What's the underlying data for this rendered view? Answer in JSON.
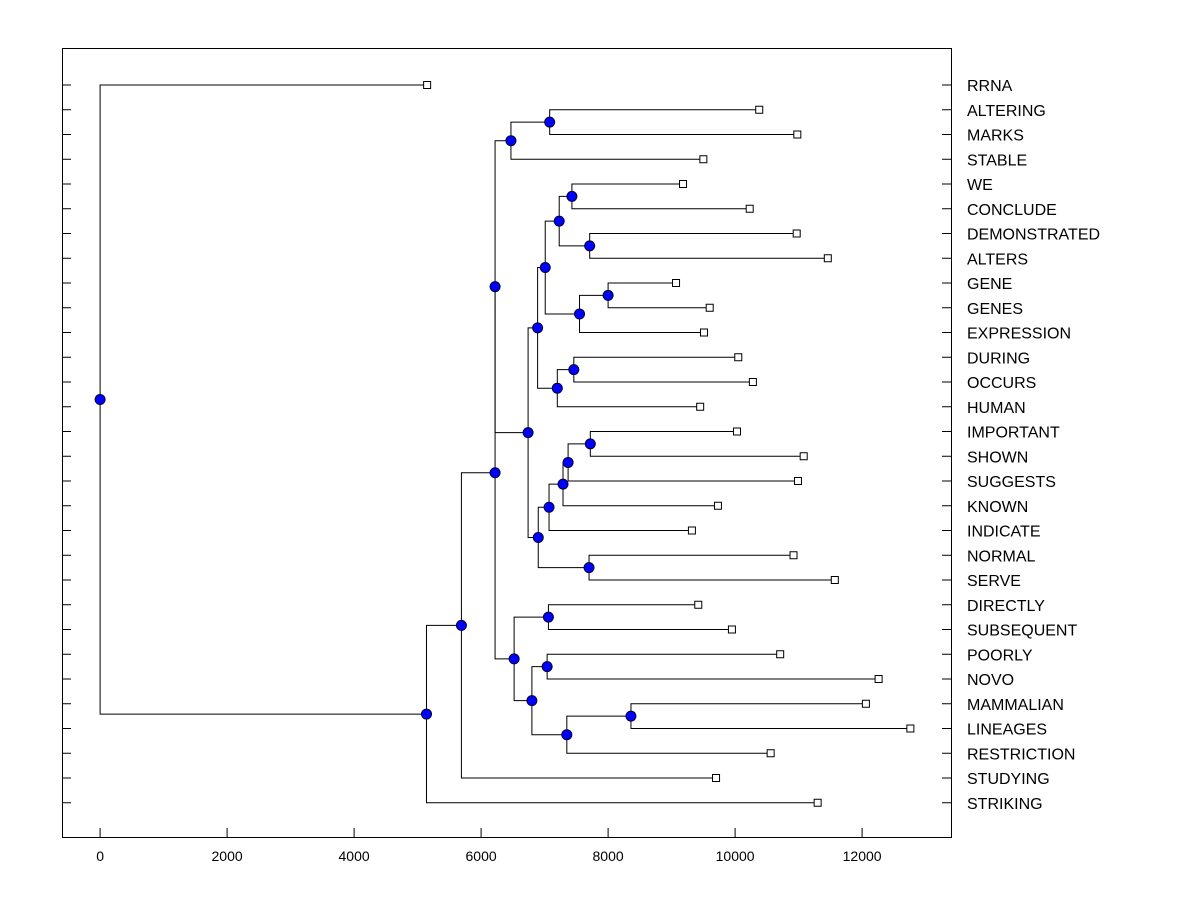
{
  "chart_data": {
    "type": "dendrogram",
    "title": "",
    "xlabel": "",
    "ylabel": "",
    "xlim": [
      -600,
      13400
    ],
    "x_ticks": [
      0,
      2000,
      4000,
      6000,
      8000,
      10000,
      12000
    ],
    "x_tick_labels": [
      "0",
      "2000",
      "4000",
      "6000",
      "8000",
      "10000",
      "12000"
    ],
    "colors": {
      "node": "#0000ff",
      "leaf": "#ffffff",
      "line": "#000000"
    },
    "leaves": [
      {
        "label": "RRNA",
        "x": 5150
      },
      {
        "label": "ALTERING",
        "x": 10380
      },
      {
        "label": "MARKS",
        "x": 10980
      },
      {
        "label": "STABLE",
        "x": 9500
      },
      {
        "label": "WE",
        "x": 9180
      },
      {
        "label": "CONCLUDE",
        "x": 10230
      },
      {
        "label": "DEMONSTRATED",
        "x": 10970
      },
      {
        "label": "ALTERS",
        "x": 11460
      },
      {
        "label": "GENE",
        "x": 9070
      },
      {
        "label": "GENES",
        "x": 9600
      },
      {
        "label": "EXPRESSION",
        "x": 9510
      },
      {
        "label": "DURING",
        "x": 10050
      },
      {
        "label": "OCCURS",
        "x": 10280
      },
      {
        "label": "HUMAN",
        "x": 9450
      },
      {
        "label": "IMPORTANT",
        "x": 10030
      },
      {
        "label": "SHOWN",
        "x": 11080
      },
      {
        "label": "SUGGESTS",
        "x": 10990
      },
      {
        "label": "KNOWN",
        "x": 9730
      },
      {
        "label": "INDICATE",
        "x": 9320
      },
      {
        "label": "NORMAL",
        "x": 10920
      },
      {
        "label": "SERVE",
        "x": 11570
      },
      {
        "label": "DIRECTLY",
        "x": 9420
      },
      {
        "label": "SUBSEQUENT",
        "x": 9950
      },
      {
        "label": "POORLY",
        "x": 10710
      },
      {
        "label": "NOVO",
        "x": 12260
      },
      {
        "label": "MAMMALIAN",
        "x": 12060
      },
      {
        "label": "LINEAGES",
        "x": 12760
      },
      {
        "label": "RESTRICTION",
        "x": 10560
      },
      {
        "label": "STUDYING",
        "x": 9700
      },
      {
        "label": "STRIKING",
        "x": 11300
      }
    ],
    "merges": [
      {
        "x": 7080,
        "children": [
          "L1",
          "L2"
        ]
      },
      {
        "x": 6470,
        "children": [
          "M0",
          "L3"
        ]
      },
      {
        "x": 7430,
        "children": [
          "L4",
          "L5"
        ]
      },
      {
        "x": 7710,
        "children": [
          "L6",
          "L7"
        ]
      },
      {
        "x": 7230,
        "children": [
          "M2",
          "M3"
        ]
      },
      {
        "x": 8000,
        "children": [
          "L8",
          "L9"
        ]
      },
      {
        "x": 7550,
        "children": [
          "M5",
          "L10"
        ]
      },
      {
        "x": 7010,
        "children": [
          "M4",
          "M6"
        ]
      },
      {
        "x": 7460,
        "children": [
          "L11",
          "L12"
        ]
      },
      {
        "x": 7200,
        "children": [
          "M8",
          "L13"
        ]
      },
      {
        "x": 6890,
        "children": [
          "M7",
          "M9"
        ]
      },
      {
        "x": 7720,
        "children": [
          "L14",
          "L15"
        ]
      },
      {
        "x": 7370,
        "children": [
          "M11",
          "L16"
        ]
      },
      {
        "x": 7290,
        "children": [
          "M12",
          "L17"
        ]
      },
      {
        "x": 7070,
        "children": [
          "M13",
          "L18"
        ]
      },
      {
        "x": 7700,
        "children": [
          "L19",
          "L20"
        ]
      },
      {
        "x": 6900,
        "children": [
          "M14",
          "M15"
        ]
      },
      {
        "x": 6740,
        "children": [
          "M10",
          "M16"
        ]
      },
      {
        "x": 6220,
        "children": [
          "M1",
          "M17"
        ]
      },
      {
        "x": 7060,
        "children": [
          "L21",
          "L22"
        ]
      },
      {
        "x": 7040,
        "children": [
          "L23",
          "L24"
        ]
      },
      {
        "x": 8360,
        "children": [
          "L25",
          "L26"
        ]
      },
      {
        "x": 7350,
        "children": [
          "M21",
          "L27"
        ]
      },
      {
        "x": 6800,
        "children": [
          "M20",
          "M22"
        ]
      },
      {
        "x": 6520,
        "children": [
          "M19",
          "M23"
        ]
      },
      {
        "x": 6220,
        "children": [
          "M18",
          "M24"
        ]
      },
      {
        "x": 5690,
        "children": [
          "M25",
          "L28"
        ]
      },
      {
        "x": 5140,
        "children": [
          "M26",
          "L29"
        ]
      },
      {
        "x": 0,
        "children": [
          "L0",
          "M27"
        ]
      }
    ]
  }
}
